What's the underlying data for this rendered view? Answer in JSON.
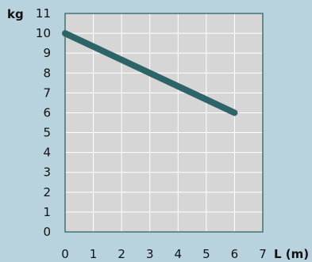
{
  "chart_data": {
    "type": "line",
    "xlabel": "L (m)",
    "ylabel": "kg",
    "xlim": [
      0,
      7
    ],
    "ylim": [
      0,
      11
    ],
    "x_ticks": [
      0,
      1,
      2,
      3,
      4,
      5,
      6,
      7
    ],
    "y_ticks": [
      0,
      1,
      2,
      3,
      4,
      5,
      6,
      7,
      8,
      9,
      10,
      11
    ],
    "grid": true,
    "series": [
      {
        "x": [
          0,
          6
        ],
        "y": [
          10,
          6
        ]
      }
    ],
    "colors": {
      "background": "#b8d3dd",
      "plot_area": "#d6d6d6",
      "grid": "#ffffff",
      "line": "#2d6468",
      "frame": "#2d6468"
    }
  }
}
